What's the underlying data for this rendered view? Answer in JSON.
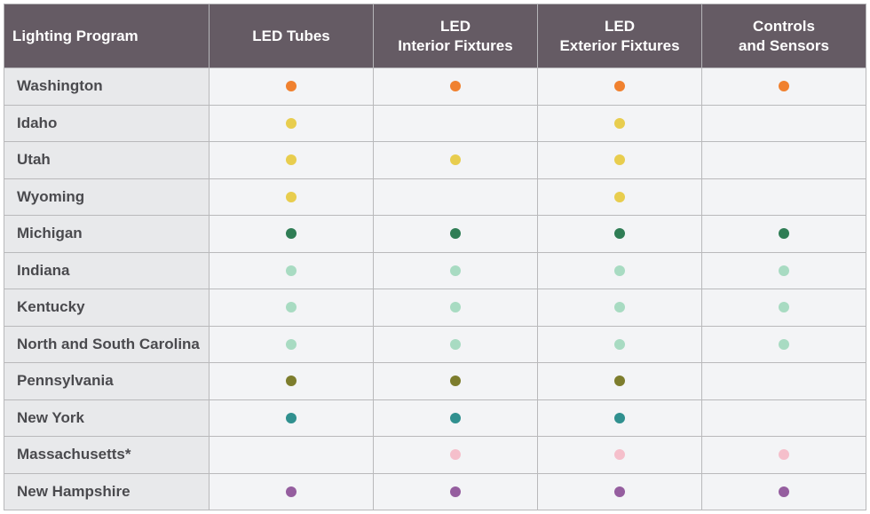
{
  "table": {
    "headers": [
      {
        "line1": "Lighting Program",
        "line2": ""
      },
      {
        "line1": "LED Tubes",
        "line2": ""
      },
      {
        "line1": "LED",
        "line2": "Interior Fixtures"
      },
      {
        "line1": "LED",
        "line2": "Exterior Fixtures"
      },
      {
        "line1": "Controls",
        "line2": "and Sensors"
      }
    ],
    "rows": [
      {
        "name": "Washington",
        "color": "#f0812f",
        "cells": [
          true,
          true,
          true,
          true
        ]
      },
      {
        "name": "Idaho",
        "color": "#e8cd4e",
        "cells": [
          true,
          false,
          true,
          false
        ]
      },
      {
        "name": "Utah",
        "color": "#e8cd4e",
        "cells": [
          true,
          true,
          true,
          false
        ]
      },
      {
        "name": "Wyoming",
        "color": "#e8cd4e",
        "cells": [
          true,
          false,
          true,
          false
        ]
      },
      {
        "name": "Michigan",
        "color": "#2f7d55",
        "cells": [
          true,
          true,
          true,
          true
        ]
      },
      {
        "name": "Indiana",
        "color": "#a8dbc2",
        "cells": [
          true,
          true,
          true,
          true
        ]
      },
      {
        "name": "Kentucky",
        "color": "#a8dbc2",
        "cells": [
          true,
          true,
          true,
          true
        ]
      },
      {
        "name": "North and South Carolina",
        "color": "#a8dbc2",
        "cells": [
          true,
          true,
          true,
          true
        ]
      },
      {
        "name": "Pennsylvania",
        "color": "#7d7d2d",
        "cells": [
          true,
          true,
          true,
          false
        ]
      },
      {
        "name": "New York",
        "color": "#30908f",
        "cells": [
          true,
          true,
          true,
          false
        ]
      },
      {
        "name": "Massachusetts*",
        "color": "#f5bfcb",
        "cells": [
          false,
          true,
          true,
          true
        ]
      },
      {
        "name": "New Hampshire",
        "color": "#955e9f",
        "cells": [
          true,
          true,
          true,
          true
        ]
      }
    ]
  },
  "colors": {
    "header_bg": "#655b64",
    "name_col_bg": "#e8e9eb",
    "cell_bg": "#f3f4f6",
    "border": "#b9b9bb"
  }
}
